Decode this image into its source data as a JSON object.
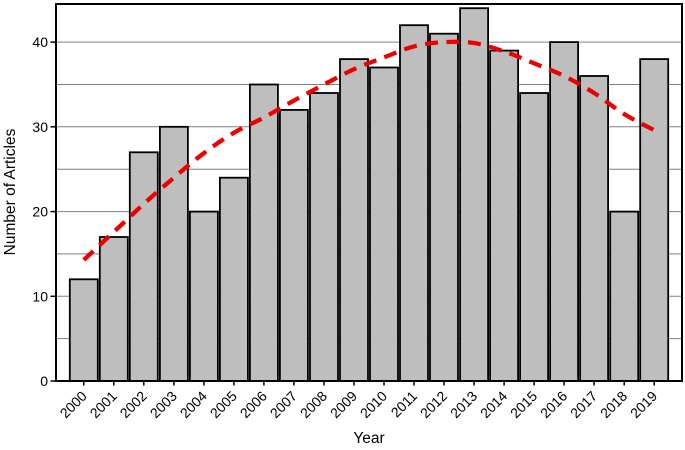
{
  "figure": {
    "background": "#ffffff",
    "text_color": "#000000"
  },
  "chart_data": {
    "type": "bar",
    "title": "",
    "xlabel": "Year",
    "ylabel": "Number of Articles",
    "categories": [
      "2000",
      "2001",
      "2002",
      "2003",
      "2004",
      "2005",
      "2006",
      "2007",
      "2008",
      "2009",
      "2010",
      "2011",
      "2012",
      "2013",
      "2014",
      "2015",
      "2016",
      "2017",
      "2018",
      "2019"
    ],
    "values": [
      12,
      17,
      27,
      30,
      20,
      24,
      35,
      32,
      34,
      38,
      37,
      42,
      41,
      44,
      39,
      34,
      40,
      36,
      20,
      38
    ],
    "ylim": [
      0,
      44.5
    ],
    "yticks": [
      0,
      10,
      20,
      30,
      40
    ],
    "gridlines_every": 5,
    "grid": true,
    "legend": "none",
    "bar_color": "#bebebe",
    "bar_border_color": "#000000",
    "gridline_color": "#808080",
    "axis_color": "#000000",
    "trendline": {
      "style": "dashed",
      "color": "#ee0000",
      "description": "smoothed polynomial trend of articles per year",
      "x": [
        2000,
        2001,
        2002,
        2003,
        2004,
        2005,
        2006,
        2007,
        2008,
        2009,
        2010,
        2011,
        2012,
        2013,
        2014,
        2015,
        2016,
        2017,
        2018,
        2019
      ],
      "y": [
        14.3,
        17.6,
        20.9,
        24.0,
        26.9,
        29.3,
        31.1,
        33.1,
        35.0,
        36.8,
        38.2,
        39.5,
        40.0,
        39.9,
        38.9,
        37.5,
        36.0,
        34.0,
        31.5,
        29.6
      ]
    }
  }
}
